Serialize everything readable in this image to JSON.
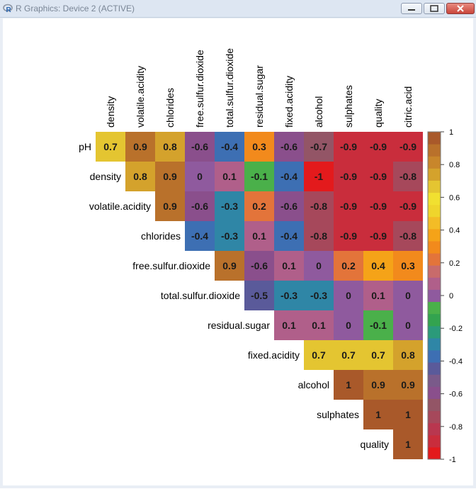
{
  "window": {
    "title": "R Graphics: Device 2 (ACTIVE)"
  },
  "chart_data": {
    "type": "heatmap",
    "col_labels": [
      "density",
      "volatile.acidity",
      "chlorides",
      "free.sulfur.dioxide",
      "total.sulfur.dioxide",
      "residual.sugar",
      "fixed.acidity",
      "alcohol",
      "sulphates",
      "quality",
      "citric.acid"
    ],
    "row_labels": [
      "pH",
      "density",
      "volatile.acidity",
      "chlorides",
      "free.sulfur.dioxide",
      "total.sulfur.dioxide",
      "residual.sugar",
      "fixed.acidity",
      "alcohol",
      "sulphates",
      "quality"
    ],
    "values": [
      [
        0.7,
        0.9,
        0.8,
        -0.6,
        -0.4,
        0.3,
        -0.6,
        -0.7,
        -0.9,
        -0.9,
        -0.9
      ],
      [
        null,
        0.8,
        0.9,
        0,
        0.1,
        -0.1,
        -0.4,
        -1,
        -0.9,
        -0.9,
        -0.8
      ],
      [
        null,
        null,
        0.9,
        -0.6,
        -0.3,
        0.2,
        -0.6,
        -0.8,
        -0.9,
        -0.9,
        -0.9
      ],
      [
        null,
        null,
        null,
        -0.4,
        -0.3,
        0.1,
        -0.4,
        -0.8,
        -0.9,
        -0.9,
        -0.8
      ],
      [
        null,
        null,
        null,
        null,
        0.9,
        -0.6,
        0.1,
        0,
        0.2,
        0.4,
        0.3
      ],
      [
        null,
        null,
        null,
        null,
        null,
        -0.5,
        -0.3,
        -0.3,
        0,
        0.1,
        0
      ],
      [
        null,
        null,
        null,
        null,
        null,
        null,
        0.1,
        0.1,
        0,
        -0.1,
        0
      ],
      [
        null,
        null,
        null,
        null,
        null,
        null,
        null,
        0.7,
        0.7,
        0.7,
        0.8
      ],
      [
        null,
        null,
        null,
        null,
        null,
        null,
        null,
        null,
        1,
        0.9,
        0.9
      ],
      [
        null,
        null,
        null,
        null,
        null,
        null,
        null,
        null,
        null,
        1,
        1
      ],
      [
        null,
        null,
        null,
        null,
        null,
        null,
        null,
        null,
        null,
        null,
        1
      ]
    ],
    "labels": [
      [
        "0.7",
        "0.9",
        "0.8",
        "-0.6",
        "-0.4",
        "0.3",
        "-0.6",
        "-0.7",
        "-0.9",
        "-0.9",
        "-0.9"
      ],
      [
        null,
        "0.8",
        "0.9",
        "0",
        "0.1",
        "-0.1",
        "-0.4",
        "-1",
        "-0.9",
        "-0.9",
        "-0.8"
      ],
      [
        null,
        null,
        "0.9",
        "-0.6",
        "-0.3",
        "0.2",
        "-0.6",
        "-0.8",
        "-0.9",
        "-0.9",
        "-0.9"
      ],
      [
        null,
        null,
        null,
        "-0.4",
        "-0.3",
        "0.1",
        "-0.4",
        "-0.8",
        "-0.9",
        "-0.9",
        "-0.8"
      ],
      [
        null,
        null,
        null,
        null,
        "0.9",
        "-0.6",
        "0.1",
        "0",
        "0.2",
        "0.4",
        "0.3"
      ],
      [
        null,
        null,
        null,
        null,
        null,
        "-0.5",
        "-0.3",
        "-0.3",
        "0",
        "0.1",
        "0"
      ],
      [
        null,
        null,
        null,
        null,
        null,
        null,
        "0.1",
        "0.1",
        "0",
        "-0.1",
        "0"
      ],
      [
        null,
        null,
        null,
        null,
        null,
        null,
        null,
        "0.7",
        "0.7",
        "0.7",
        "0.8"
      ],
      [
        null,
        null,
        null,
        null,
        null,
        null,
        null,
        null,
        "1",
        "0.9",
        "0.9"
      ],
      [
        null,
        null,
        null,
        null,
        null,
        null,
        null,
        null,
        null,
        "1",
        "1"
      ],
      [
        null,
        null,
        null,
        null,
        null,
        null,
        null,
        null,
        null,
        null,
        "1"
      ]
    ],
    "colorbar": {
      "range": [
        -1,
        1
      ],
      "ticks": [
        "1",
        "0.8",
        "0.6",
        "0.4",
        "0.2",
        "0",
        "-0.2",
        "-0.4",
        "-0.6",
        "-0.8",
        "-1"
      ]
    },
    "palette": [
      "#e31a1c",
      "#c92d3c",
      "#b9374f",
      "#a6485b",
      "#935566",
      "#8a4f8c",
      "#7a5a8a",
      "#5a5a9a",
      "#3d6fb3",
      "#2f86a6",
      "#2b9a7a",
      "#33a34f",
      "#4ab04a",
      "#8f5a9e",
      "#b05f8a",
      "#c86b6b",
      "#e3743a",
      "#f28a1c",
      "#f5a318",
      "#f3bc26",
      "#efd52c",
      "#f1e030",
      "#e4c531",
      "#d4a22c",
      "#c8862b",
      "#b9712b",
      "#a9592a"
    ],
    "grid": false,
    "legend": "right"
  }
}
